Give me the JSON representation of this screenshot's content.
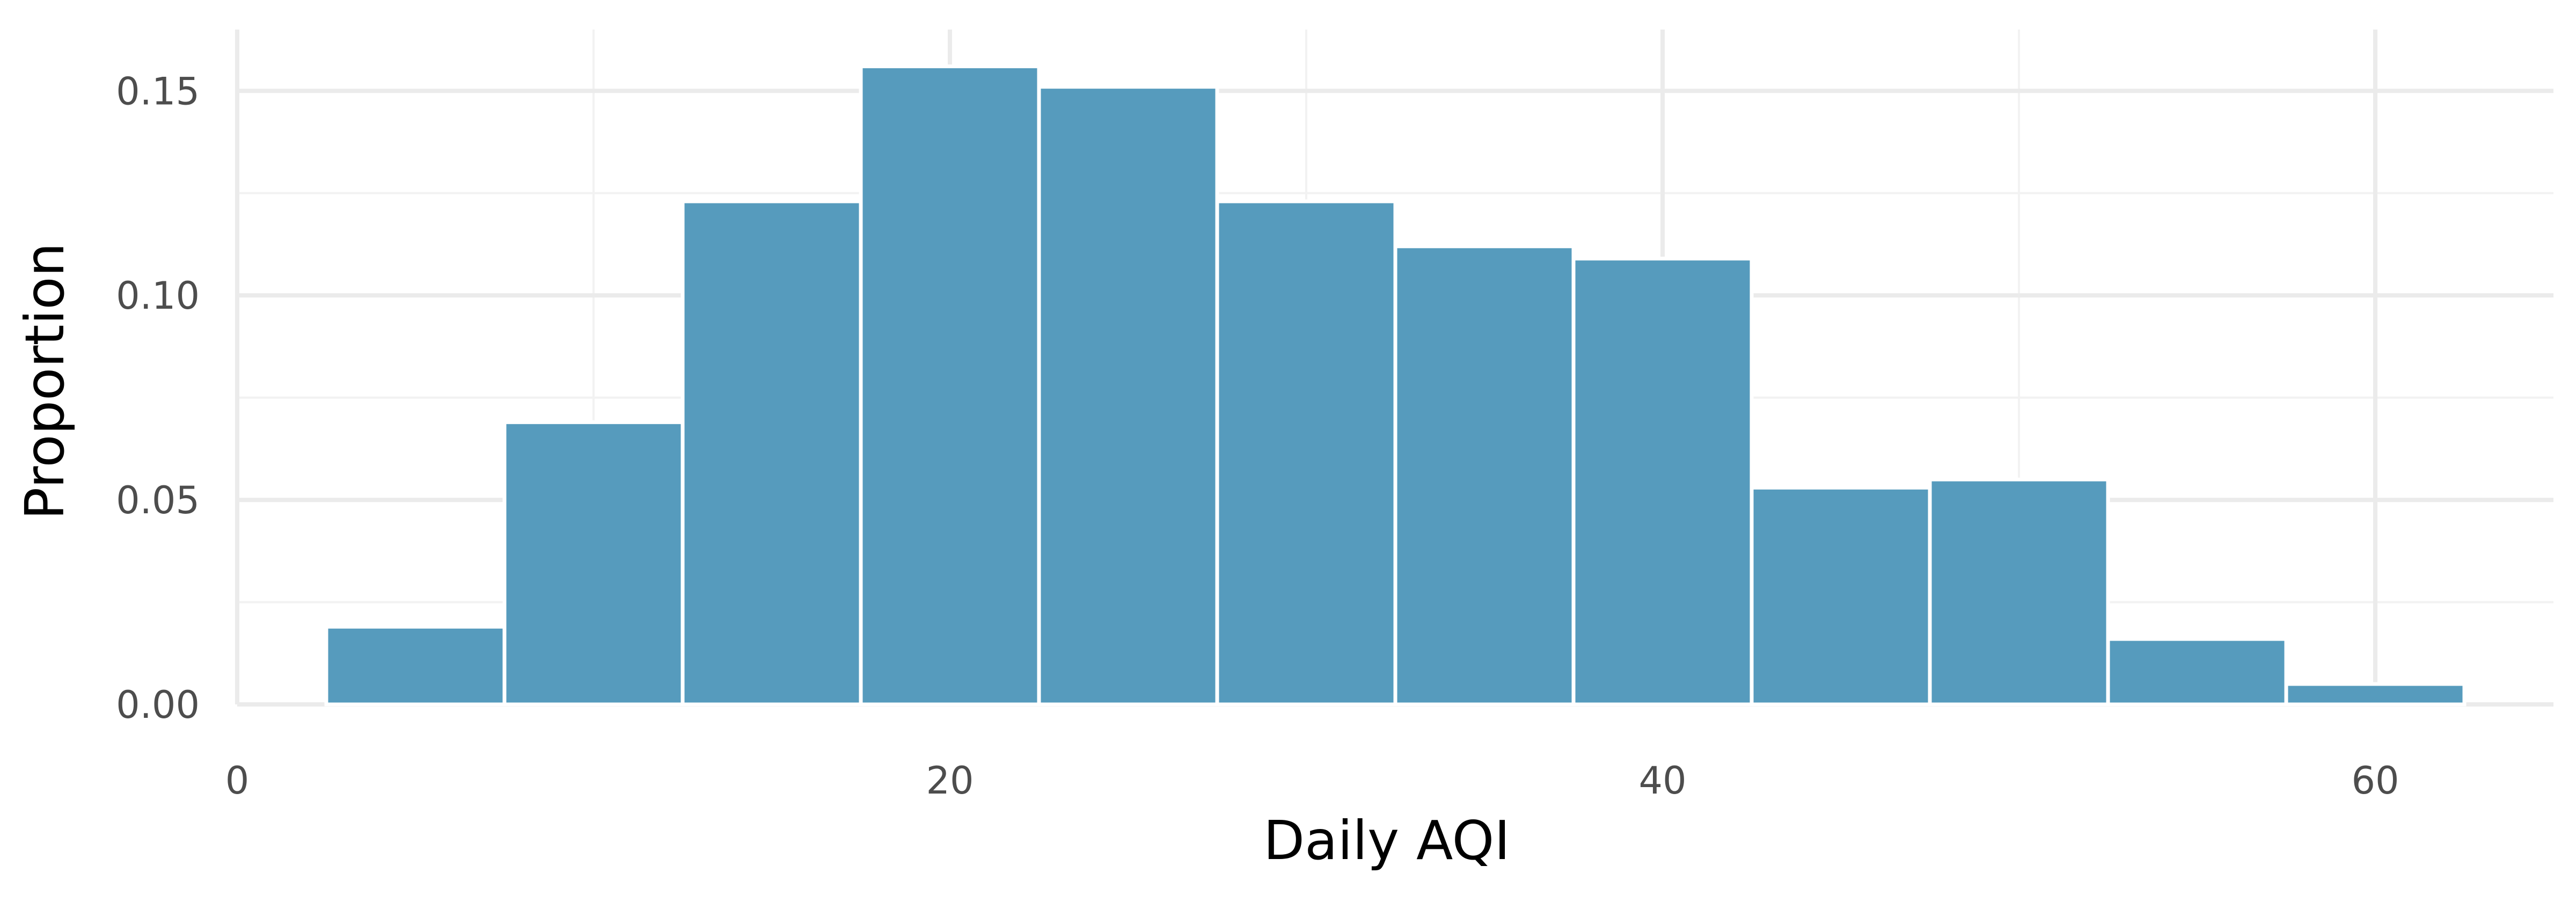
{
  "chart_data": {
    "type": "bar",
    "subtype": "histogram",
    "title": "",
    "xlabel": "Daily AQI",
    "ylabel": "Proportion",
    "bin_width": 5,
    "bins": [
      {
        "x_start": 2.5,
        "x_end": 7.5,
        "value": 0.019
      },
      {
        "x_start": 7.5,
        "x_end": 12.5,
        "value": 0.069
      },
      {
        "x_start": 12.5,
        "x_end": 17.5,
        "value": 0.123
      },
      {
        "x_start": 17.5,
        "x_end": 22.5,
        "value": 0.156
      },
      {
        "x_start": 22.5,
        "x_end": 27.5,
        "value": 0.151
      },
      {
        "x_start": 27.5,
        "x_end": 32.5,
        "value": 0.123
      },
      {
        "x_start": 32.5,
        "x_end": 37.5,
        "value": 0.112
      },
      {
        "x_start": 37.5,
        "x_end": 42.5,
        "value": 0.109
      },
      {
        "x_start": 42.5,
        "x_end": 47.5,
        "value": 0.053
      },
      {
        "x_start": 47.5,
        "x_end": 52.5,
        "value": 0.055
      },
      {
        "x_start": 52.5,
        "x_end": 57.5,
        "value": 0.016
      },
      {
        "x_start": 57.5,
        "x_end": 62.5,
        "value": 0.005
      }
    ],
    "xlim": [
      0,
      65
    ],
    "ylim": [
      0,
      0.165
    ],
    "x_ticks": [
      0,
      20,
      40,
      60
    ],
    "x_tick_labels": [
      "0",
      "20",
      "40",
      "60"
    ],
    "y_ticks": [
      0,
      0.05,
      0.1,
      0.15
    ],
    "y_tick_labels": [
      "0.00",
      "0.05",
      "0.10",
      "0.15"
    ],
    "x_minor_ticks": [
      10,
      30,
      50
    ],
    "y_minor_ticks": [
      0.025,
      0.075,
      0.125
    ],
    "grid": true,
    "legend": "none",
    "colors": {
      "bar_fill": "#569bbd",
      "bar_outline": "#ffffff",
      "grid_major": "#ebebeb",
      "grid_minor": "#f2f2f2",
      "tick_text": "#4d4d4d",
      "title_text": "#000000"
    }
  }
}
